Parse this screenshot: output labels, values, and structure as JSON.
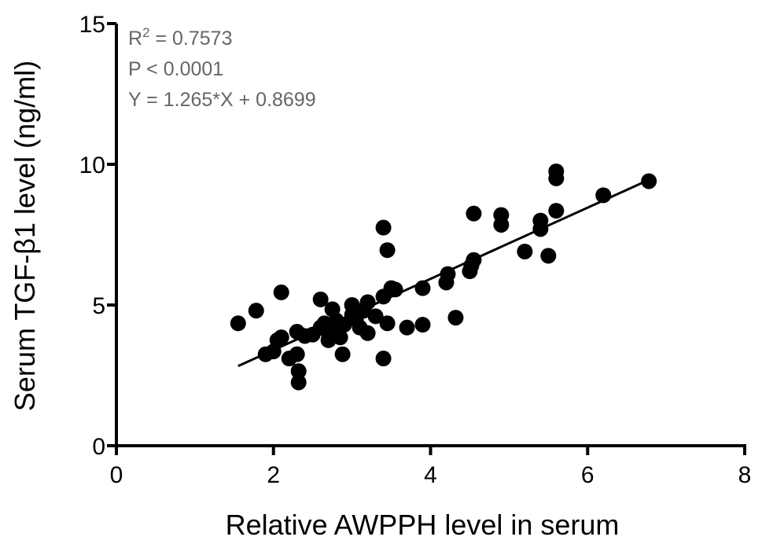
{
  "chart_data": {
    "type": "scatter",
    "xlabel": "Relative AWPPH level in serum",
    "ylabel": "Serum TGF-β1 level (ng/ml)",
    "xlim": [
      0,
      8
    ],
    "ylim": [
      0,
      15
    ],
    "xticks": [
      0,
      2,
      4,
      6,
      8
    ],
    "yticks": [
      0,
      5,
      10,
      15
    ],
    "annotations": {
      "r2_prefix": "R",
      "r2_sup": "2",
      "r2_value": " = 0.7573",
      "p_value": "P < 0.0001",
      "equation": "Y = 1.265*X + 0.8699"
    },
    "fit": {
      "slope": 1.265,
      "intercept": 0.8699,
      "x_range": [
        1.55,
        6.75
      ]
    },
    "points": [
      {
        "x": 1.55,
        "y": 4.35
      },
      {
        "x": 1.78,
        "y": 4.8
      },
      {
        "x": 1.9,
        "y": 3.25
      },
      {
        "x": 2.0,
        "y": 3.35
      },
      {
        "x": 2.05,
        "y": 3.75
      },
      {
        "x": 2.1,
        "y": 3.85
      },
      {
        "x": 2.1,
        "y": 5.45
      },
      {
        "x": 2.2,
        "y": 3.1
      },
      {
        "x": 2.3,
        "y": 3.25
      },
      {
        "x": 2.32,
        "y": 2.65
      },
      {
        "x": 2.32,
        "y": 2.25
      },
      {
        "x": 2.3,
        "y": 4.05
      },
      {
        "x": 2.4,
        "y": 3.9
      },
      {
        "x": 2.5,
        "y": 3.95
      },
      {
        "x": 2.6,
        "y": 4.2
      },
      {
        "x": 2.6,
        "y": 5.2
      },
      {
        "x": 2.65,
        "y": 4.35
      },
      {
        "x": 2.7,
        "y": 3.75
      },
      {
        "x": 2.7,
        "y": 4.0
      },
      {
        "x": 2.75,
        "y": 4.85
      },
      {
        "x": 2.8,
        "y": 4.1
      },
      {
        "x": 2.8,
        "y": 4.45
      },
      {
        "x": 2.85,
        "y": 3.85
      },
      {
        "x": 2.88,
        "y": 3.25
      },
      {
        "x": 2.9,
        "y": 4.3
      },
      {
        "x": 3.0,
        "y": 4.65
      },
      {
        "x": 3.0,
        "y": 5.0
      },
      {
        "x": 3.05,
        "y": 4.5
      },
      {
        "x": 3.1,
        "y": 4.2
      },
      {
        "x": 3.15,
        "y": 4.8
      },
      {
        "x": 3.2,
        "y": 4.0
      },
      {
        "x": 3.2,
        "y": 5.1
      },
      {
        "x": 3.3,
        "y": 4.6
      },
      {
        "x": 3.4,
        "y": 5.3
      },
      {
        "x": 3.4,
        "y": 3.1
      },
      {
        "x": 3.4,
        "y": 7.75
      },
      {
        "x": 3.45,
        "y": 6.95
      },
      {
        "x": 3.45,
        "y": 4.35
      },
      {
        "x": 3.5,
        "y": 5.6
      },
      {
        "x": 3.55,
        "y": 5.55
      },
      {
        "x": 3.7,
        "y": 4.2
      },
      {
        "x": 3.9,
        "y": 5.6
      },
      {
        "x": 3.9,
        "y": 4.3
      },
      {
        "x": 4.2,
        "y": 5.8
      },
      {
        "x": 4.22,
        "y": 6.1
      },
      {
        "x": 4.32,
        "y": 4.55
      },
      {
        "x": 4.5,
        "y": 6.2
      },
      {
        "x": 4.52,
        "y": 6.4
      },
      {
        "x": 4.55,
        "y": 6.6
      },
      {
        "x": 4.55,
        "y": 8.25
      },
      {
        "x": 4.9,
        "y": 7.85
      },
      {
        "x": 4.9,
        "y": 8.2
      },
      {
        "x": 5.2,
        "y": 6.9
      },
      {
        "x": 5.4,
        "y": 7.7
      },
      {
        "x": 5.4,
        "y": 8.0
      },
      {
        "x": 5.5,
        "y": 6.75
      },
      {
        "x": 5.6,
        "y": 8.35
      },
      {
        "x": 5.6,
        "y": 9.5
      },
      {
        "x": 5.6,
        "y": 9.75
      },
      {
        "x": 6.2,
        "y": 8.9
      },
      {
        "x": 6.78,
        "y": 9.4
      }
    ]
  }
}
